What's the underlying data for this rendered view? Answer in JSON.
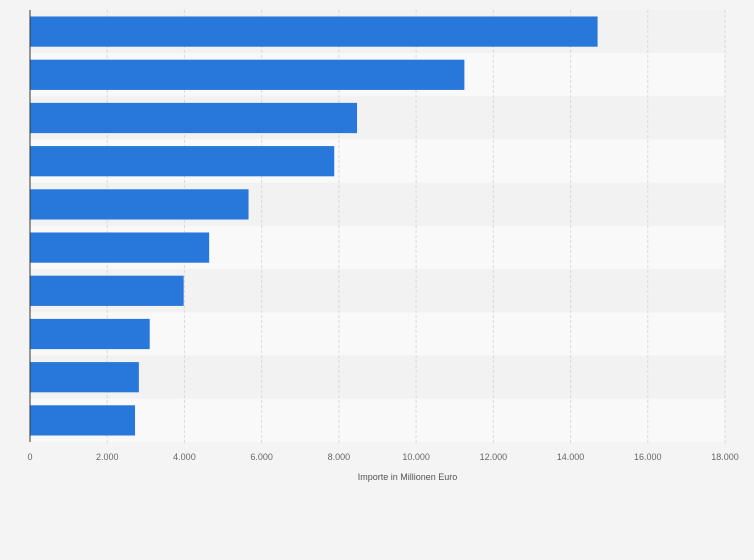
{
  "chart_data": {
    "type": "bar",
    "orientation": "horizontal",
    "title": "",
    "xlabel": "Importe in Millionen Euro",
    "ylabel": "",
    "xlim": [
      0,
      18000
    ],
    "ticks": [
      "0",
      "2.000",
      "4.000",
      "6.000",
      "8.000",
      "10.000",
      "12.000",
      "14.000",
      "16.000",
      "18.000"
    ],
    "tick_values": [
      0,
      2000,
      4000,
      6000,
      8000,
      10000,
      12000,
      14000,
      16000,
      18000
    ],
    "values": [
      14700,
      11250,
      8470,
      7880,
      5660,
      4640,
      3980,
      3100,
      2820,
      2720
    ],
    "bar_color": "#2878dc",
    "grid": true,
    "legend": "none"
  }
}
